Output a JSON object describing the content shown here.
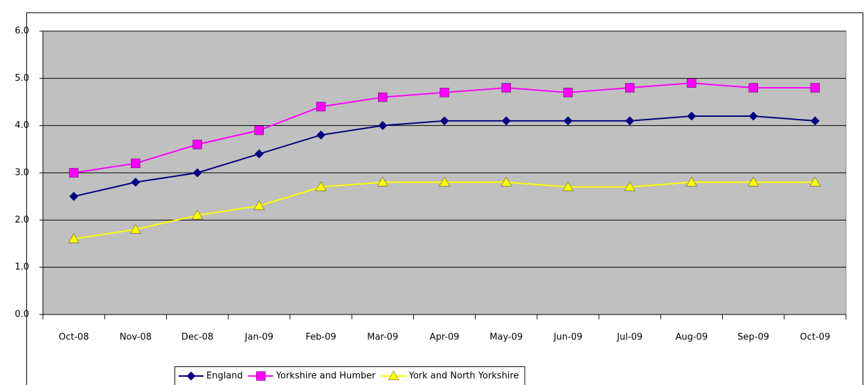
{
  "chart_data": {
    "type": "line",
    "categories": [
      "Oct-08",
      "Nov-08",
      "Dec-08",
      "Jan-09",
      "Feb-09",
      "Mar-09",
      "Apr-09",
      "May-09",
      "Jun-09",
      "Jul-09",
      "Aug-09",
      "Sep-09",
      "Oct-09"
    ],
    "series": [
      {
        "name": "England",
        "color": "#000080",
        "marker": "diamond",
        "values": [
          2.5,
          2.8,
          3.0,
          3.4,
          3.8,
          4.0,
          4.1,
          4.1,
          4.1,
          4.1,
          4.2,
          4.2,
          4.1
        ]
      },
      {
        "name": "Yorkshire and Humber",
        "color": "#ff00ff",
        "marker": "square",
        "values": [
          3.0,
          3.2,
          3.6,
          3.9,
          4.4,
          4.6,
          4.7,
          4.8,
          4.7,
          4.8,
          4.9,
          4.8,
          4.8
        ]
      },
      {
        "name": "York and North Yorkshire",
        "color": "#ffff00",
        "marker": "triangle",
        "values": [
          1.6,
          1.8,
          2.1,
          2.3,
          2.7,
          2.8,
          2.8,
          2.8,
          2.7,
          2.7,
          2.8,
          2.8,
          2.8
        ]
      }
    ],
    "ylim": [
      0,
      6
    ],
    "yticks": [
      {
        "value": 0,
        "label": "0.0"
      },
      {
        "value": 1,
        "label": "1.0"
      },
      {
        "value": 2,
        "label": "2.0"
      },
      {
        "value": 3,
        "label": "3.0"
      },
      {
        "value": 4,
        "label": "4.0"
      },
      {
        "value": 5,
        "label": "5.0"
      },
      {
        "value": 6,
        "label": "6.0"
      }
    ],
    "grid": true,
    "plot_background": "#c0c0c0",
    "legend": "bottom"
  }
}
